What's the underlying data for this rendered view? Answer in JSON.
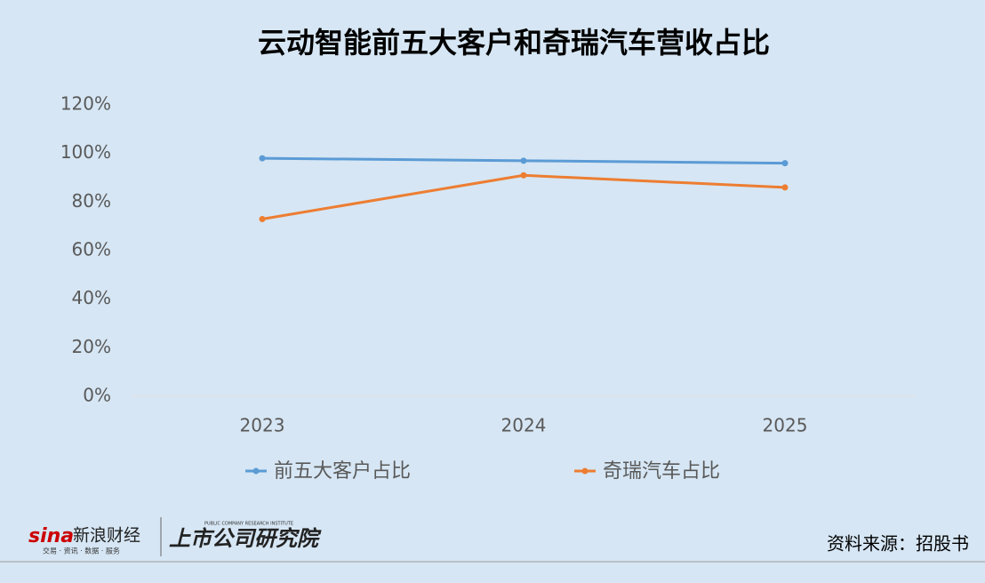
{
  "chart_data": {
    "type": "line",
    "title": "云动智能前五大客户和奇瑞汽车营收占比",
    "categories": [
      "2023",
      "2024",
      "2025"
    ],
    "series": [
      {
        "name": "前五大客户占比",
        "color": "#5b9bd5",
        "values": [
          98,
          97,
          96
        ]
      },
      {
        "name": "奇瑞汽车占比",
        "color": "#ed7d31",
        "values": [
          73,
          91,
          86
        ]
      }
    ],
    "ylim": [
      0,
      120
    ],
    "yticks": [
      {
        "value": 0,
        "label": "0%"
      },
      {
        "value": 20,
        "label": "20%"
      },
      {
        "value": 40,
        "label": "40%"
      },
      {
        "value": 60,
        "label": "60%"
      },
      {
        "value": 80,
        "label": "80%"
      },
      {
        "value": 100,
        "label": "100%"
      },
      {
        "value": 120,
        "label": "120%"
      }
    ],
    "grid": false,
    "legend": "bottom",
    "source": "资料来源：招股书",
    "logo": {
      "brand": "sina",
      "name": "新浪财经",
      "tagline": "交易 · 资讯 · 数据 · 服务",
      "institute": "上市公司研究院",
      "institute_en": "PUBLIC COMPANY RESEARCH INSTITUTE"
    }
  }
}
